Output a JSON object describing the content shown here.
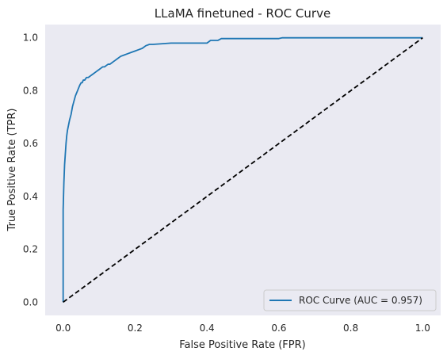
{
  "chart_data": {
    "type": "line",
    "title": "LLaMA finetuned - ROC Curve",
    "xlabel": "False Positive Rate (FPR)",
    "ylabel": "True Positive Rate (TPR)",
    "xlim": [
      -0.05,
      1.05
    ],
    "ylim": [
      -0.05,
      1.05
    ],
    "xticks": [
      "0.0",
      "0.2",
      "0.4",
      "0.6",
      "0.8",
      "1.0"
    ],
    "yticks": [
      "0.0",
      "0.2",
      "0.4",
      "0.6",
      "0.8",
      "1.0"
    ],
    "grid": false,
    "legend_position": "lower-right",
    "colors": {
      "background": "#eaeaf2",
      "roc": "#1f77b4",
      "diagonal": "#000000"
    },
    "series": [
      {
        "name": "ROC Curve (AUC = 0.957)",
        "style": "solid",
        "x": [
          0.0,
          0.0,
          0.002,
          0.004,
          0.006,
          0.008,
          0.01,
          0.012,
          0.015,
          0.018,
          0.022,
          0.026,
          0.03,
          0.034,
          0.037,
          0.04,
          0.043,
          0.046,
          0.05,
          0.053,
          0.056,
          0.06,
          0.065,
          0.07,
          0.075,
          0.08,
          0.085,
          0.09,
          0.095,
          0.1,
          0.105,
          0.11,
          0.115,
          0.12,
          0.125,
          0.13,
          0.135,
          0.14,
          0.145,
          0.15,
          0.16,
          0.17,
          0.18,
          0.19,
          0.2,
          0.21,
          0.22,
          0.23,
          0.24,
          0.25,
          0.3,
          0.31,
          0.4,
          0.41,
          0.43,
          0.44,
          0.6,
          0.61,
          1.0
        ],
        "y": [
          0.0,
          0.35,
          0.45,
          0.52,
          0.56,
          0.6,
          0.63,
          0.65,
          0.67,
          0.69,
          0.71,
          0.74,
          0.76,
          0.78,
          0.79,
          0.8,
          0.81,
          0.82,
          0.83,
          0.83,
          0.84,
          0.84,
          0.85,
          0.85,
          0.855,
          0.86,
          0.865,
          0.87,
          0.875,
          0.88,
          0.885,
          0.89,
          0.89,
          0.895,
          0.9,
          0.9,
          0.905,
          0.91,
          0.915,
          0.92,
          0.93,
          0.935,
          0.94,
          0.945,
          0.95,
          0.955,
          0.96,
          0.97,
          0.975,
          0.975,
          0.98,
          0.98,
          0.98,
          0.99,
          0.99,
          0.997,
          0.997,
          1.0,
          1.0
        ]
      },
      {
        "name": "",
        "style": "dashed",
        "x": [
          0.0,
          1.0
        ],
        "y": [
          0.0,
          1.0
        ]
      }
    ]
  }
}
